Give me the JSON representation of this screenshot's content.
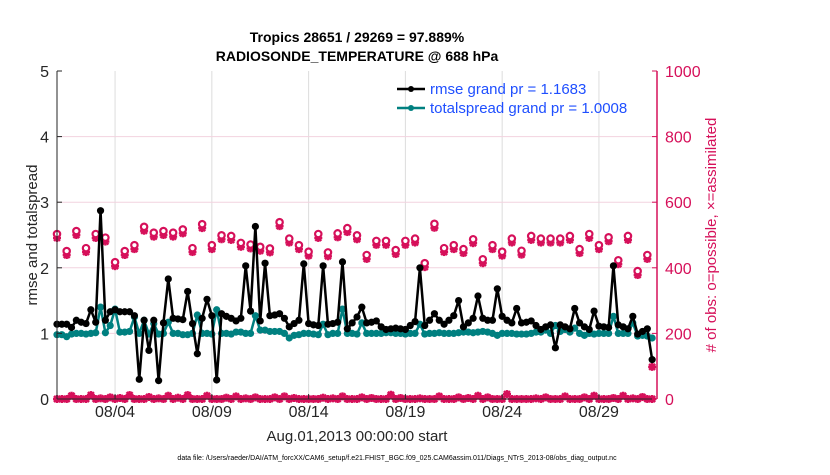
{
  "chart_data": {
    "type": "line",
    "title": [
      "Tropics 28651 / 29269 = 97.889%",
      "RADIOSONDE_TEMPERATURE @ 688 hPa"
    ],
    "xlabel": "Aug.01,2013 00:00:00 start",
    "ylabel_left": "rmse and totalspread",
    "ylabel_right": "# of obs: o=possible, ×=assimilated",
    "footnote": "data file: /Users/raeder/DAI/ATM_forcXX/CAM6_setup/f.e21.FHIST_BGC.f09_025.CAM6assim.011/Diags_NTrS_2013-08/obs_diag_output.nc",
    "xlim_days": [
      1,
      32
    ],
    "ylim_left": [
      0,
      5
    ],
    "ylim_right": [
      0,
      1000
    ],
    "xticks": [
      {
        "day": 4,
        "label": "08/04"
      },
      {
        "day": 9,
        "label": "08/09"
      },
      {
        "day": 14,
        "label": "08/14"
      },
      {
        "day": 19,
        "label": "08/19"
      },
      {
        "day": 24,
        "label": "08/24"
      },
      {
        "day": 29,
        "label": "08/29"
      }
    ],
    "yticks_left": [
      "0",
      "1",
      "2",
      "3",
      "4",
      "5"
    ],
    "yticks_right": [
      "0",
      "200",
      "400",
      "600",
      "800",
      "1000"
    ],
    "grid": true,
    "legend_placement": "top-right",
    "colors": {
      "rmse": "#000000",
      "totalspread": "#008080",
      "obs": "#d6105a",
      "legend_text": "#1f4fff"
    },
    "series_x_start_day": 1,
    "series_step_days": 0.25,
    "series": [
      {
        "name": "rmse",
        "legend": "rmse grand pr = 1.1683",
        "values": [
          1.14,
          1.14,
          1.14,
          1.09,
          1.2,
          1.17,
          1.15,
          1.36,
          1.17,
          2.87,
          1.2,
          1.33,
          1.36,
          1.33,
          1.33,
          1.33,
          1.27,
          0.3,
          1.2,
          0.74,
          1.2,
          0.28,
          1.16,
          1.83,
          1.23,
          1.22,
          1.21,
          1.64,
          1.15,
          0.69,
          1.23,
          1.52,
          1.27,
          0.29,
          1.3,
          1.26,
          1.23,
          1.19,
          1.23,
          2.03,
          1.34,
          2.63,
          1.19,
          2.07,
          1.27,
          1.28,
          1.3,
          1.23,
          1.1,
          1.15,
          1.2,
          2.06,
          1.15,
          1.13,
          1.12,
          2.03,
          1.14,
          1.15,
          1.17,
          2.09,
          1.07,
          1.16,
          1.25,
          1.4,
          1.16,
          1.17,
          1.19,
          1.1,
          1.06,
          1.07,
          1.08,
          1.07,
          1.06,
          1.12,
          1.18,
          2.0,
          1.12,
          1.2,
          1.3,
          1.2,
          1.14,
          1.2,
          1.27,
          1.5,
          1.1,
          1.16,
          1.23,
          1.57,
          1.23,
          1.2,
          1.2,
          1.68,
          1.26,
          1.2,
          1.16,
          1.38,
          1.16,
          1.17,
          1.19,
          1.12,
          1.06,
          1.1,
          1.13,
          0.78,
          1.13,
          1.1,
          1.07,
          1.38,
          1.16,
          1.1,
          1.06,
          1.34,
          1.11,
          1.1,
          1.09,
          2.03,
          1.13,
          1.1,
          1.07,
          1.26,
          0.99,
          1.03,
          1.07,
          0.6
        ]
      },
      {
        "name": "totalspread",
        "legend": "totalspread grand pr = 1.0008",
        "values": [
          0.98,
          0.98,
          0.95,
          0.99,
          1.0,
          1.0,
          0.99,
          1.0,
          1.01,
          1.4,
          1.01,
          1.12,
          1.37,
          1.02,
          1.02,
          1.03,
          1.25,
          1.0,
          1.2,
          0.99,
          1.15,
          0.99,
          1.0,
          1.17,
          1.0,
          1.0,
          0.98,
          0.98,
          1.0,
          1.28,
          1.0,
          1.0,
          0.99,
          1.36,
          1.0,
          1.0,
          0.99,
          1.02,
          1.02,
          1.0,
          1.0,
          1.27,
          1.05,
          1.05,
          1.03,
          1.03,
          1.03,
          1.0,
          0.93,
          0.97,
          0.98,
          1.0,
          1.0,
          0.99,
          0.98,
          1.14,
          0.98,
          1.0,
          1.0,
          1.37,
          1.0,
          1.0,
          0.99,
          1.16,
          1.0,
          1.0,
          1.0,
          1.0,
          1.01,
          1.01,
          1.0,
          1.0,
          0.99,
          1.0,
          1.0,
          1.14,
          0.99,
          1.0,
          1.0,
          1.01,
          1.0,
          1.0,
          1.0,
          1.01,
          1.02,
          1.02,
          1.01,
          1.02,
          1.03,
          1.02,
          1.0,
          0.97,
          1.0,
          1.0,
          1.0,
          0.99,
          0.99,
          0.99,
          1.0,
          1.02,
          1.02,
          1.05,
          1.0,
          1.12,
          1.03,
          1.06,
          1.02,
          1.08,
          1.0,
          0.97,
          1.0,
          0.99,
          1.0,
          1.0,
          1.0,
          1.26,
          1.0,
          1.0,
          1.0,
          1.16,
          0.96,
          0.97,
          0.96,
          0.93
        ]
      }
    ],
    "obs_x_start_day": 1,
    "obs_step_days": 0.5,
    "obs_possible": [
      503,
      451,
      512,
      460,
      503,
      492,
      417,
      451,
      469,
      525,
      507,
      512,
      507,
      517,
      460,
      533,
      469,
      499,
      497,
      476,
      471,
      464,
      459,
      539,
      489,
      469,
      449,
      503,
      447,
      505,
      521,
      499,
      439,
      482,
      482,
      454,
      482,
      489,
      414,
      534,
      460,
      469,
      457,
      487,
      426,
      469,
      449,
      489,
      452,
      497,
      489,
      489,
      489,
      497,
      457,
      503,
      469,
      493,
      423,
      497,
      390,
      439
    ],
    "obs_assimilated": [
      491,
      439,
      500,
      448,
      491,
      480,
      405,
      439,
      457,
      513,
      495,
      500,
      495,
      505,
      448,
      521,
      457,
      487,
      485,
      464,
      459,
      452,
      447,
      527,
      477,
      457,
      437,
      491,
      435,
      493,
      509,
      487,
      427,
      470,
      470,
      442,
      470,
      477,
      402,
      522,
      448,
      457,
      445,
      475,
      414,
      457,
      437,
      477,
      440,
      485,
      477,
      477,
      477,
      485,
      445,
      491,
      457,
      481,
      411,
      485,
      378,
      427
    ],
    "obs_last_point": {
      "day": 31.75,
      "possible": 98,
      "assimilated": 98
    },
    "obs_low_series": [
      0,
      10,
      0,
      12,
      2,
      5,
      3,
      12,
      0,
      6,
      2,
      10,
      4,
      12,
      0,
      10,
      0,
      4,
      8,
      2,
      5,
      0,
      5,
      8,
      3,
      0,
      0,
      4,
      2,
      8,
      0,
      5,
      3,
      0,
      13,
      3,
      0,
      2,
      0,
      8,
      0,
      5,
      3,
      10,
      5,
      0,
      15,
      0,
      0,
      2,
      5,
      0,
      8,
      0,
      5,
      10,
      0,
      3,
      10,
      2,
      6,
      0
    ]
  }
}
